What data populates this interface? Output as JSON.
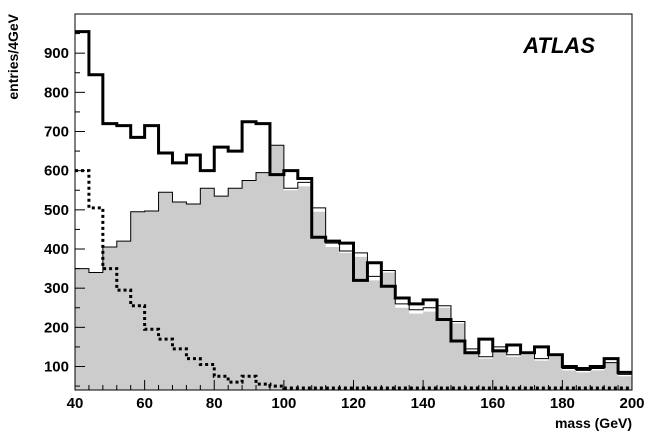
{
  "chart_data": {
    "type": "histogram",
    "title": "",
    "annotation": "ATLAS",
    "xlabel": "mass (GeV)",
    "ylabel": "entries/4GeV",
    "xlim": [
      40,
      200
    ],
    "ylim": [
      40,
      1000
    ],
    "bin_width": 4,
    "x_ticks": [
      40,
      60,
      80,
      100,
      120,
      140,
      160,
      180,
      200
    ],
    "y_ticks": [
      100,
      200,
      300,
      400,
      500,
      600,
      700,
      800,
      900
    ],
    "bin_edges": [
      40,
      44,
      48,
      52,
      56,
      60,
      64,
      68,
      72,
      76,
      80,
      84,
      88,
      92,
      96,
      100,
      104,
      108,
      112,
      116,
      120,
      124,
      128,
      132,
      136,
      140,
      144,
      148,
      152,
      156,
      160,
      164,
      168,
      172,
      176,
      180,
      184,
      188,
      192,
      196,
      200
    ],
    "series": [
      {
        "style": "filled-gray",
        "values": [
          350,
          340,
          405,
          420,
          495,
          497,
          545,
          520,
          515,
          555,
          535,
          555,
          575,
          595,
          665,
          550,
          560,
          495,
          405,
          390,
          380,
          320,
          340,
          250,
          235,
          240,
          250,
          210,
          140,
          120,
          145,
          125,
          130,
          115,
          125,
          90,
          85,
          90,
          110,
          75
        ]
      },
      {
        "style": "solid-thin",
        "values": [
          350,
          340,
          405,
          420,
          495,
          497,
          545,
          520,
          515,
          555,
          535,
          555,
          575,
          595,
          665,
          555,
          570,
          505,
          415,
          395,
          390,
          330,
          345,
          260,
          245,
          250,
          255,
          215,
          145,
          125,
          150,
          130,
          135,
          120,
          130,
          95,
          90,
          95,
          110,
          80
        ]
      },
      {
        "style": "solid-thick",
        "values": [
          955,
          845,
          720,
          715,
          685,
          715,
          645,
          620,
          640,
          600,
          660,
          650,
          725,
          720,
          590,
          600,
          580,
          430,
          420,
          415,
          320,
          365,
          305,
          275,
          260,
          270,
          220,
          165,
          135,
          170,
          140,
          155,
          135,
          150,
          130,
          100,
          95,
          100,
          120,
          85
        ]
      },
      {
        "style": "dashed-thick",
        "values": [
          600,
          505,
          350,
          295,
          255,
          195,
          170,
          145,
          120,
          105,
          75,
          60,
          75,
          55,
          50,
          45,
          45,
          45,
          45,
          45,
          45,
          45,
          45,
          45,
          45,
          45,
          45,
          45,
          45,
          45,
          45,
          45,
          45,
          45,
          45,
          45,
          45,
          45,
          45,
          45
        ]
      }
    ]
  }
}
